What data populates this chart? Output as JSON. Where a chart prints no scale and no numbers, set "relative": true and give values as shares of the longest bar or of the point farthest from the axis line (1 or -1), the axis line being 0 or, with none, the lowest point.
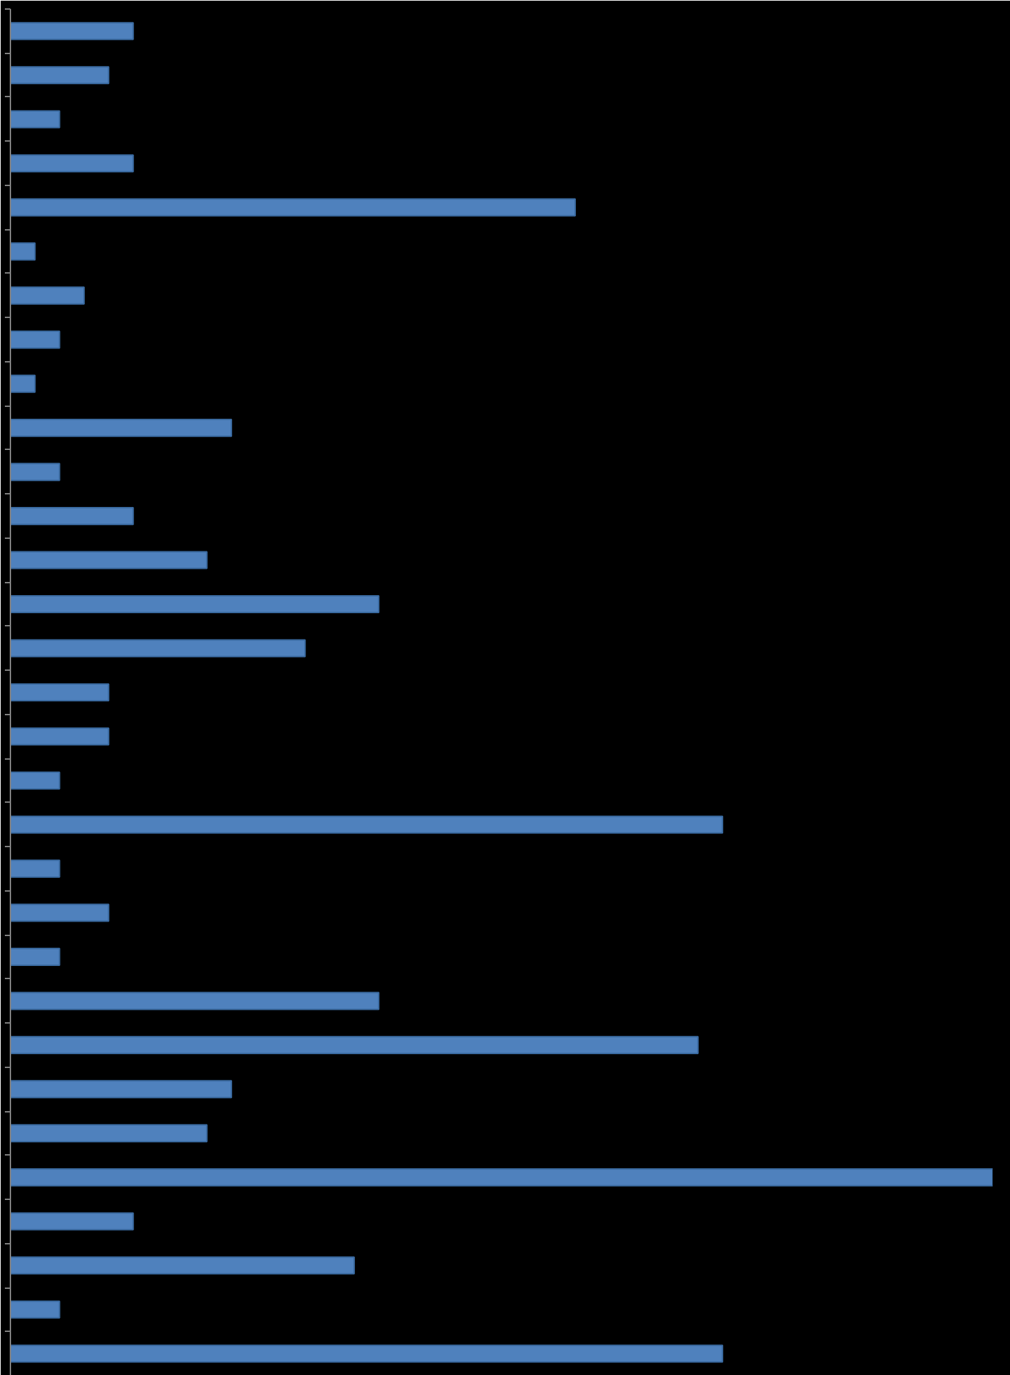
{
  "chart_data": {
    "type": "bar",
    "orientation": "horizontal",
    "relative": true,
    "color": "#4f81bd",
    "grid": false,
    "categories": [
      null,
      null,
      null,
      null,
      null,
      null,
      null,
      null,
      null,
      null,
      null,
      null,
      null,
      null,
      null,
      null,
      null,
      null,
      null,
      null,
      null,
      null,
      null,
      null,
      null,
      null,
      null,
      null,
      null,
      null,
      null
    ],
    "values": [
      0.125,
      0.1,
      0.05,
      0.125,
      0.575,
      0.025,
      0.075,
      0.05,
      0.025,
      0.225,
      0.05,
      0.125,
      0.2,
      0.375,
      0.3,
      0.1,
      0.1,
      0.05,
      0.725,
      0.05,
      0.1,
      0.05,
      0.375,
      0.7,
      0.225,
      0.2,
      1,
      0.125,
      0.35,
      0.05,
      0.725
    ]
  }
}
